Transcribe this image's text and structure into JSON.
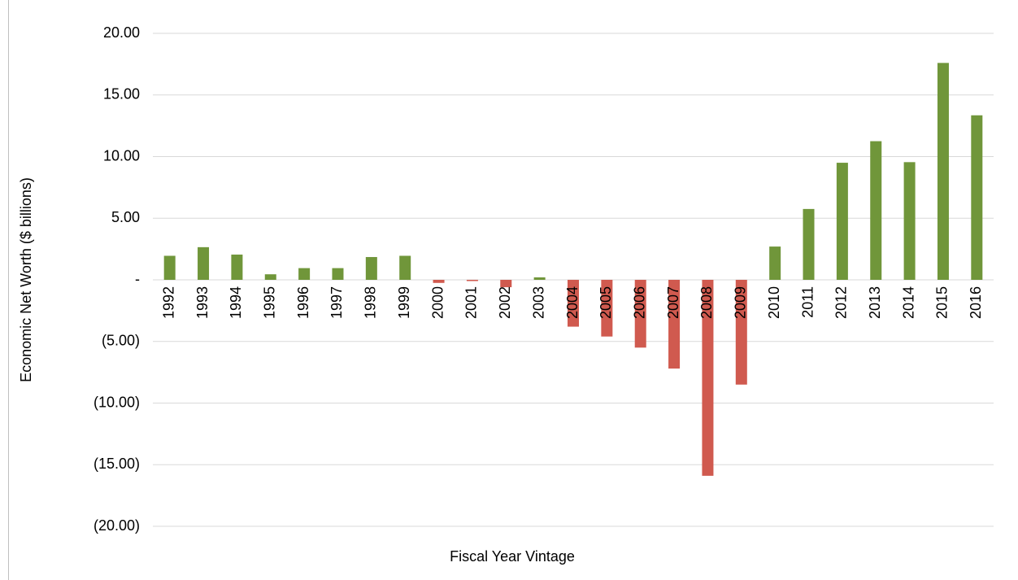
{
  "chart_data": {
    "type": "bar",
    "x_label": "Fiscal Year Vintage",
    "y_label": "Economic Net Worth ($ billions)",
    "categories": [
      "1992",
      "1993",
      "1994",
      "1995",
      "1996",
      "1997",
      "1998",
      "1999",
      "2000",
      "2001",
      "2002",
      "2003",
      "2004",
      "2005",
      "2006",
      "2007",
      "2008",
      "2009",
      "2010",
      "2011",
      "2012",
      "2013",
      "2014",
      "2015",
      "2016"
    ],
    "values": [
      1.95,
      2.65,
      2.05,
      0.45,
      0.95,
      0.95,
      1.85,
      1.95,
      -0.25,
      -0.1,
      -0.6,
      0.2,
      -3.8,
      -4.6,
      -5.5,
      -7.2,
      -15.9,
      -8.5,
      2.7,
      5.75,
      9.5,
      11.25,
      9.55,
      17.6,
      13.35
    ],
    "positive_color": "#70963a",
    "negative_color": "#d05a4f",
    "ylim": [
      -20,
      20
    ],
    "yticks": [
      {
        "value": -20,
        "label": "(20.00)"
      },
      {
        "value": -15,
        "label": "(15.00)"
      },
      {
        "value": -10,
        "label": "(10.00)"
      },
      {
        "value": -5,
        "label": "(5.00)"
      },
      {
        "value": 0,
        "label": "-"
      },
      {
        "value": 5,
        "label": "5.00"
      },
      {
        "value": 10,
        "label": "10.00"
      },
      {
        "value": 15,
        "label": "15.00"
      },
      {
        "value": 20,
        "label": "20.00"
      }
    ],
    "grid": true
  }
}
